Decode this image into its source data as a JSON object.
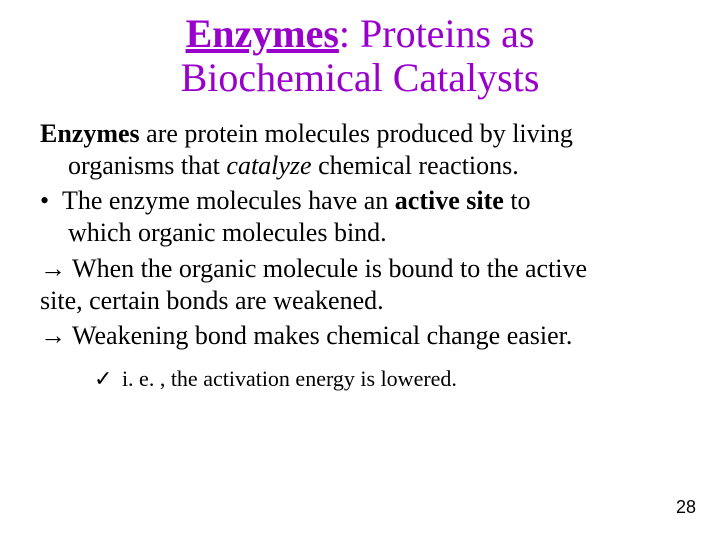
{
  "title": {
    "underlined": "Enzymes",
    "rest_line1": ": Proteins as",
    "line2": "Biochemical Catalysts",
    "color": "#9900cc",
    "fontsize": 40
  },
  "body": {
    "fontsize": 26,
    "color": "#000000",
    "para1": {
      "lead": "Enzymes",
      "mid1": " are protein molecules produced by living",
      "mid2": "organisms that ",
      "catalyze": "catalyze",
      "tail": " chemical reactions."
    },
    "bullet": {
      "marker": "•",
      "text1": "The enzyme molecules have an ",
      "active": "active site",
      "text2": " to",
      "text3": "which organic molecules bind."
    },
    "arrow1": {
      "marker": "→",
      "text1": " When the organic molecule is bound to the active",
      "text2": "site, certain bonds are weakened."
    },
    "arrow2": {
      "marker": "→",
      "text": " Weakening bond makes chemical change easier."
    }
  },
  "sub": {
    "check": "✓",
    "text": " i. e. , the activation energy is lowered.",
    "fontsize": 22
  },
  "pagenum": "28",
  "background_color": "#ffffff"
}
